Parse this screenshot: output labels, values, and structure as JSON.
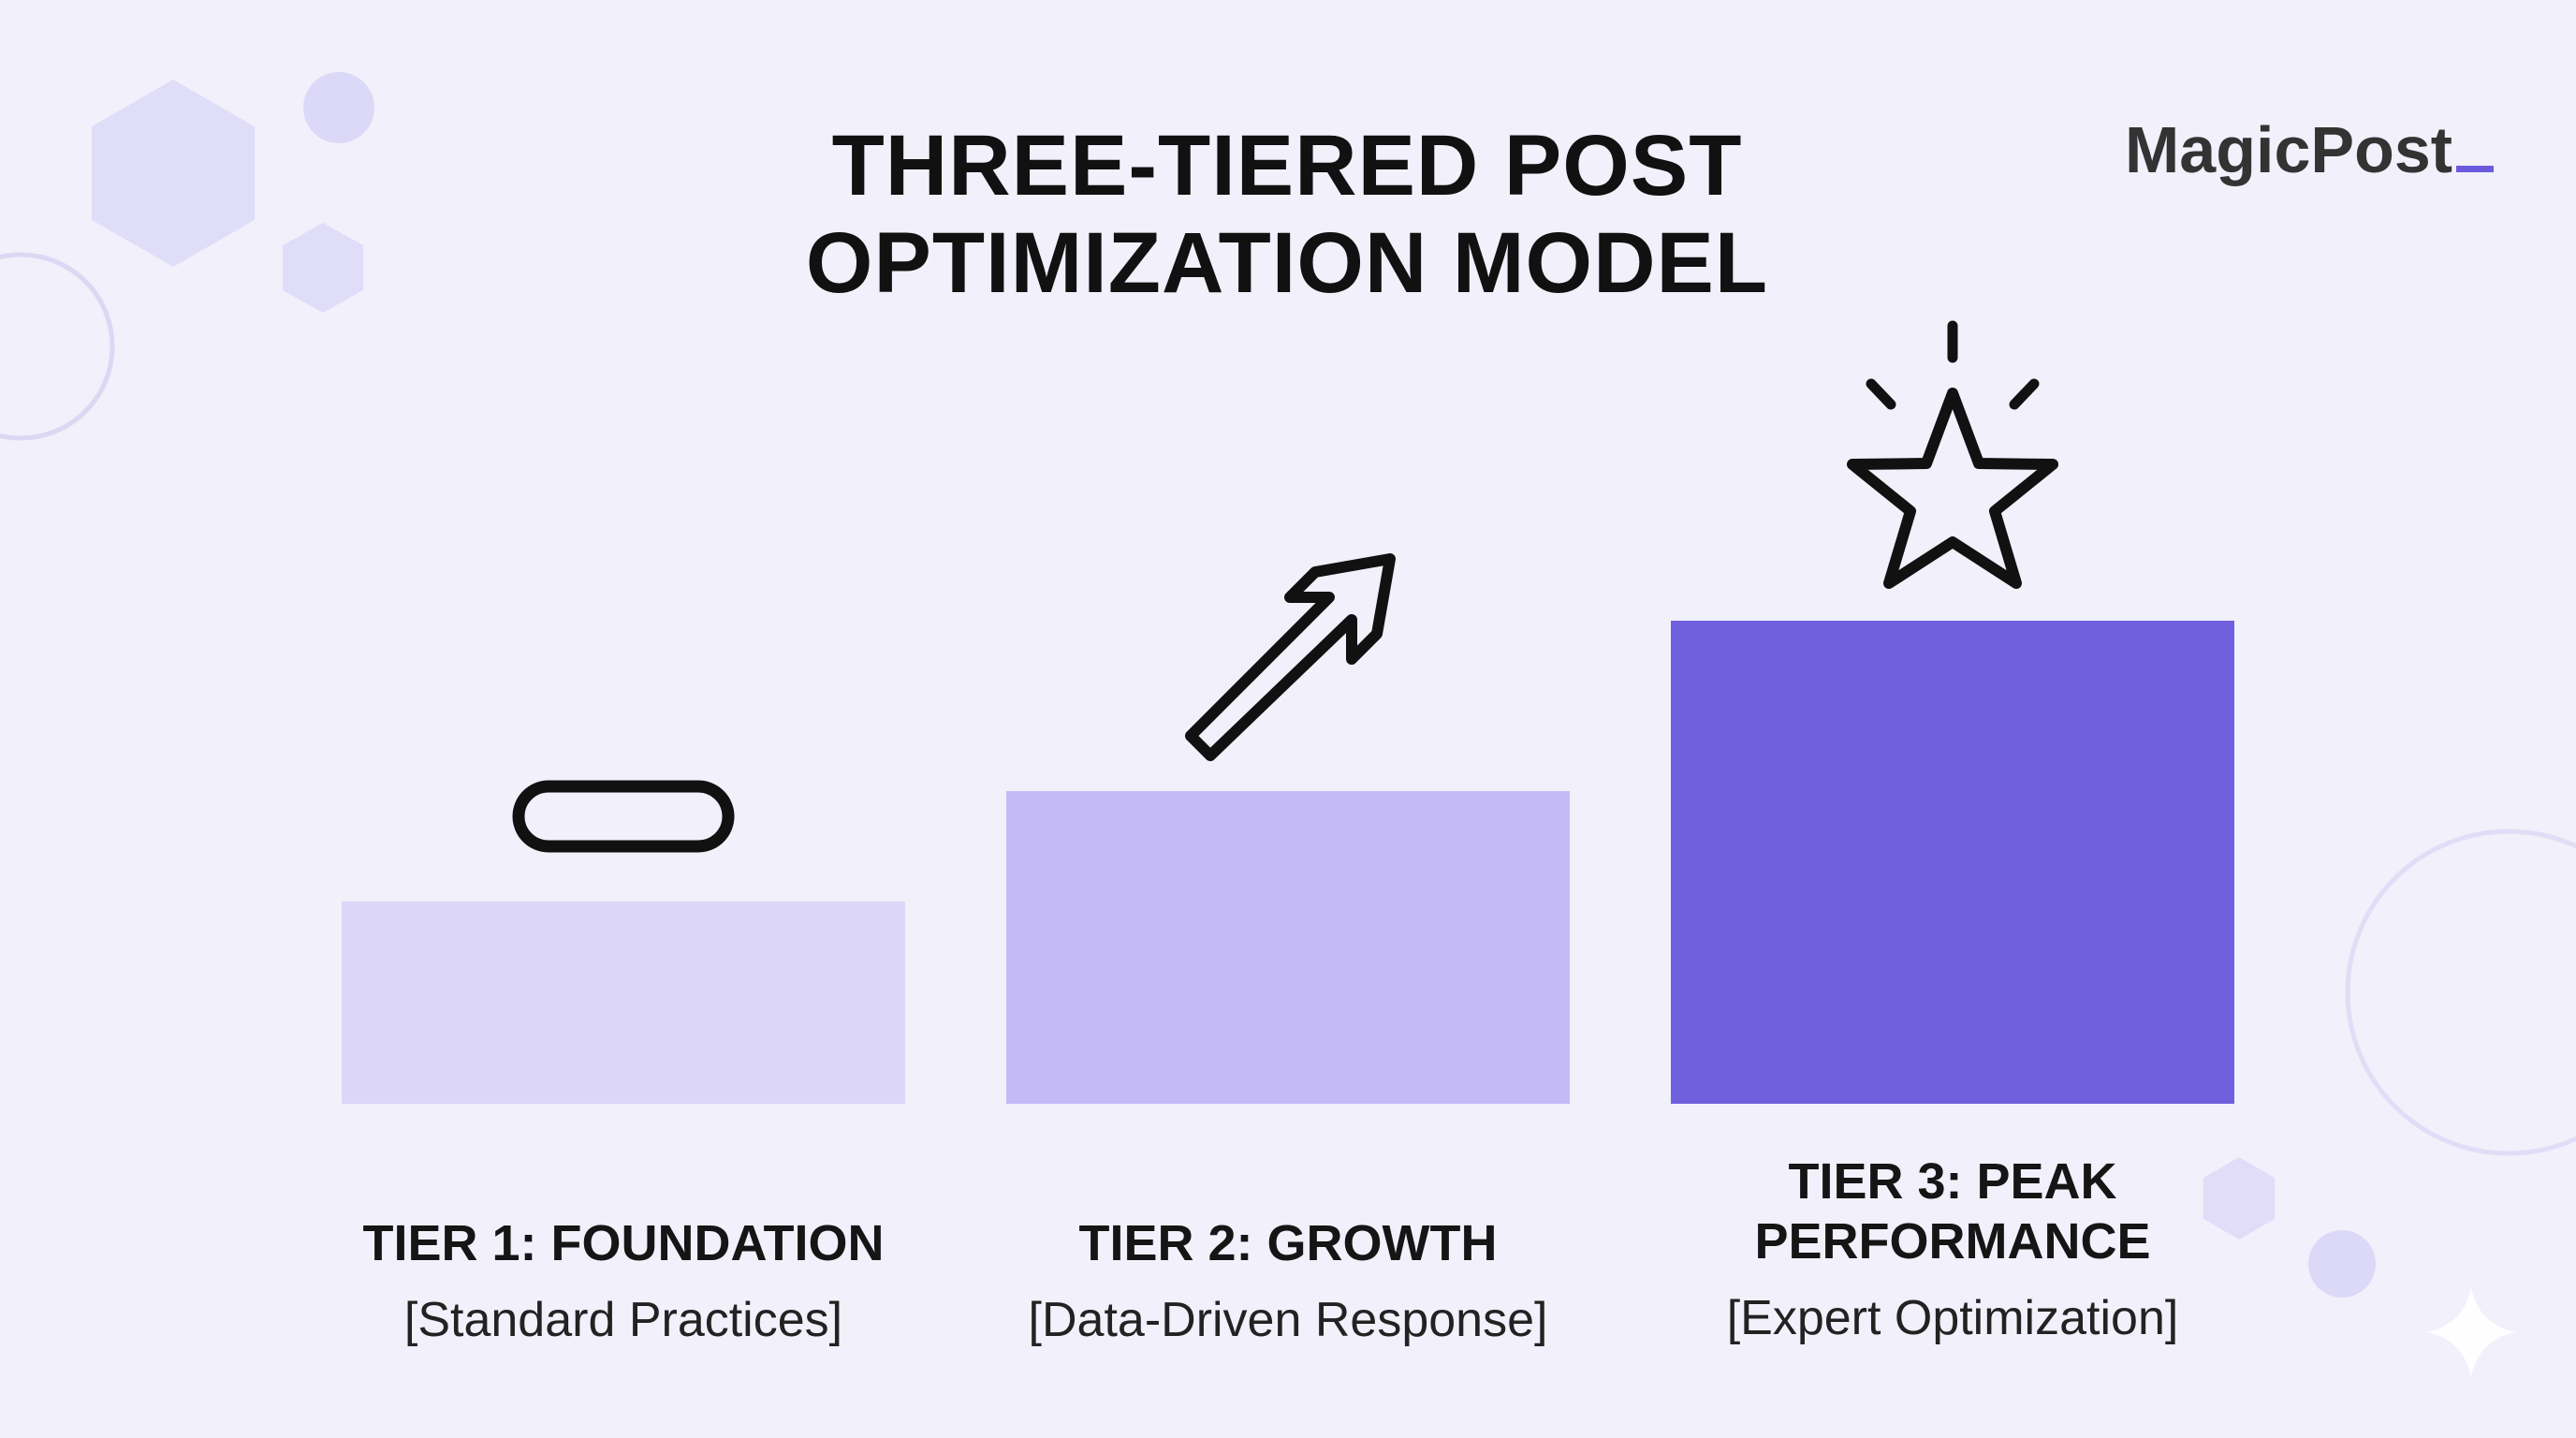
{
  "title": {
    "line1": "THREE-TIERED POST",
    "line2": "OPTIMIZATION MODEL"
  },
  "brand": {
    "name": "MagicPost"
  },
  "tiers": [
    {
      "name": "TIER 1: FOUNDATION",
      "subtitle": "[Standard Practices]",
      "icon": "pill-icon",
      "color": "#dcd6f8"
    },
    {
      "name": "TIER 2: GROWTH",
      "subtitle": "[Data-Driven Response]",
      "icon": "arrow-up-right-icon",
      "color": "#c4bbf6"
    },
    {
      "name_line1": "TIER 3: PEAK",
      "name_line2": "PERFORMANCE",
      "subtitle": "[Expert Optimization]",
      "icon": "star-icon",
      "color": "#7160dd"
    }
  ],
  "colors": {
    "background": "#f1f0fb",
    "accent": "#6b5bdc",
    "decor": "#d9d5f5"
  }
}
